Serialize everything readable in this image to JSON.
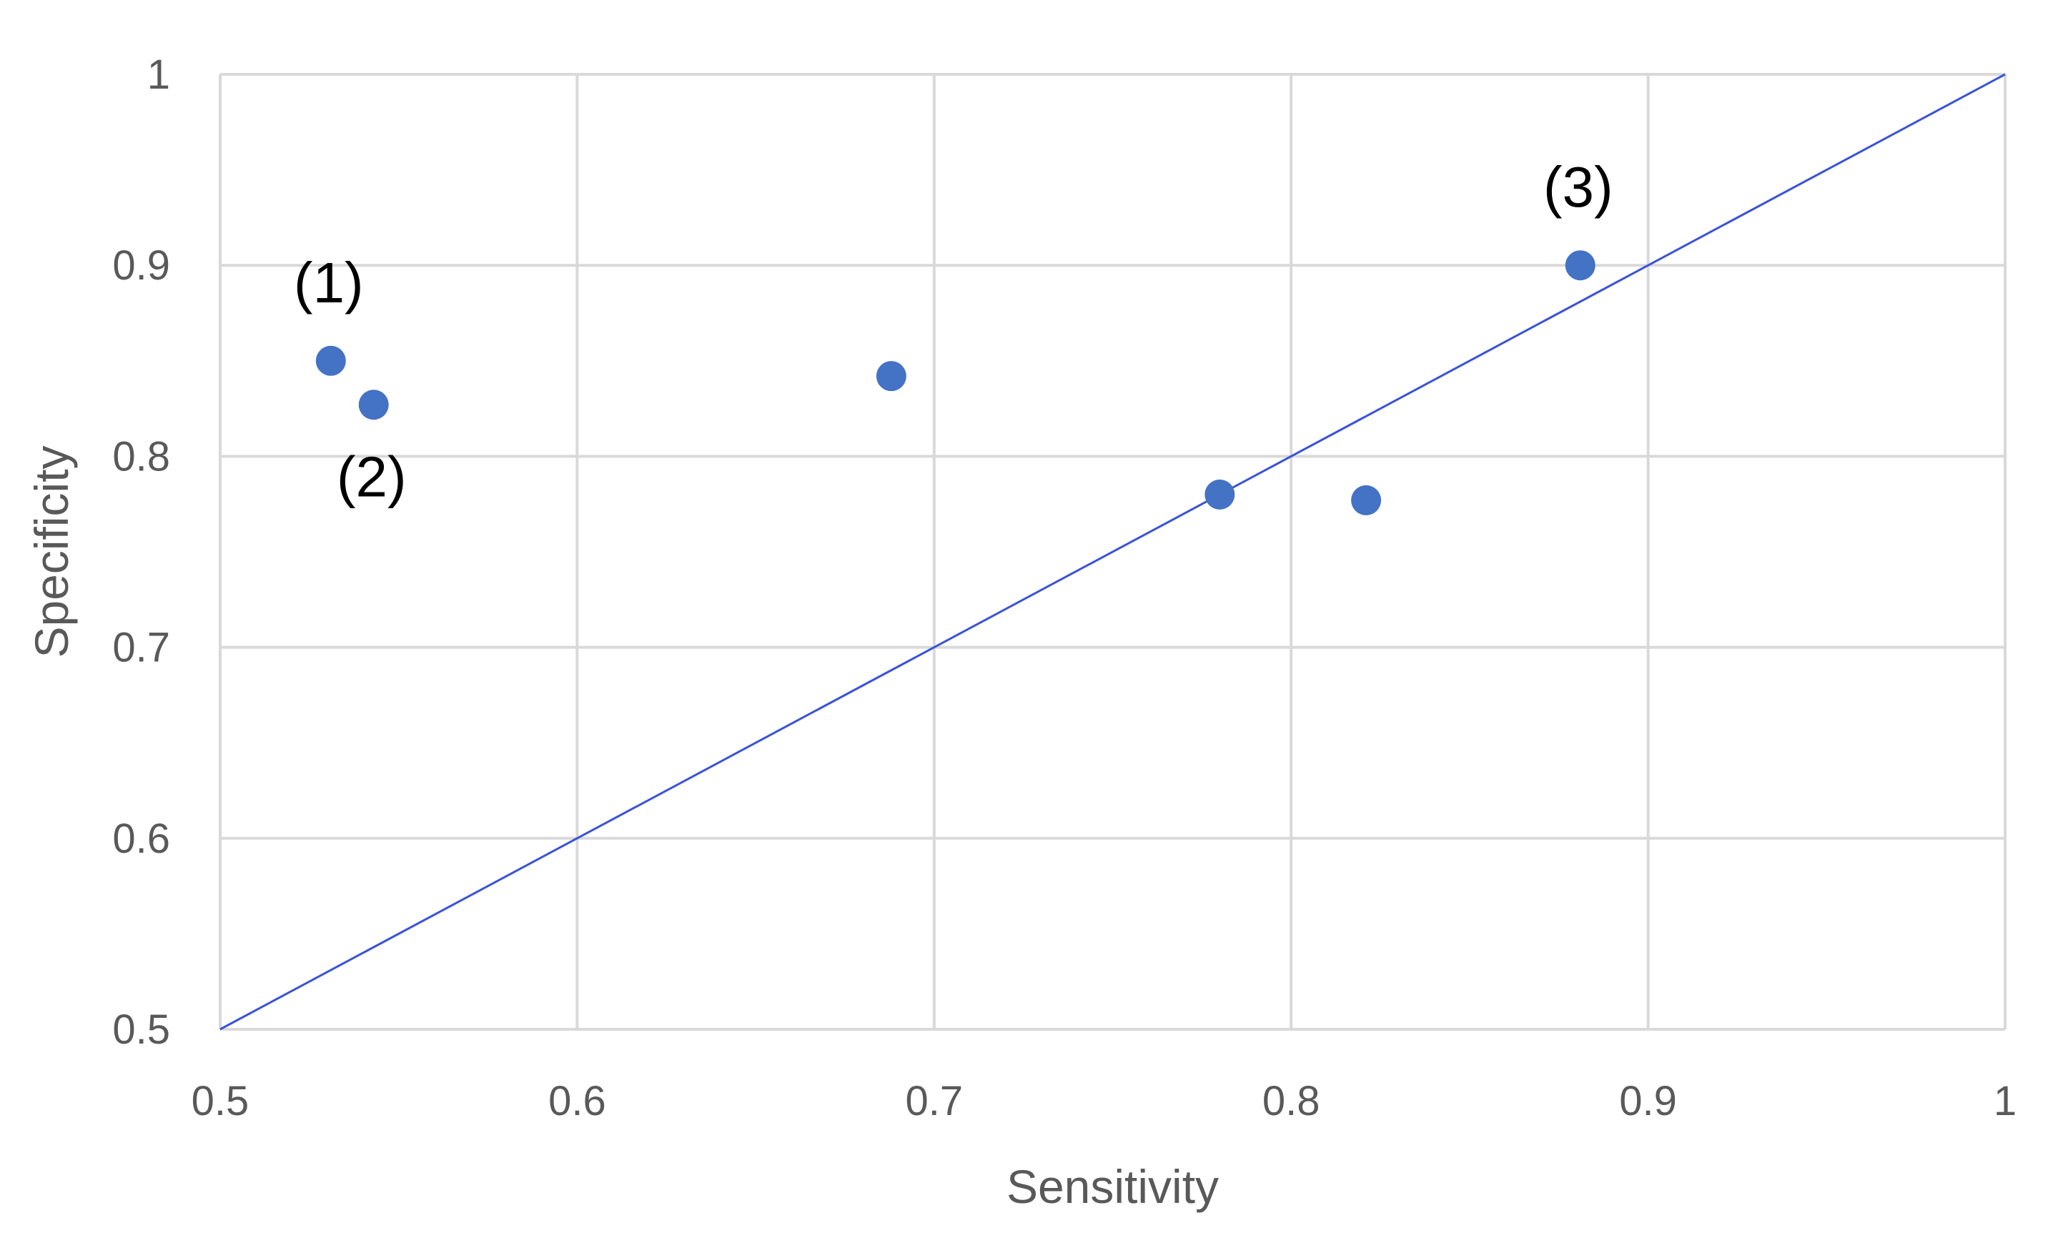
{
  "chart_data": {
    "type": "scatter",
    "title": "",
    "xlabel": "Sensitivity",
    "ylabel": "Specificity",
    "xlim": [
      0.5,
      1
    ],
    "ylim": [
      0.5,
      1
    ],
    "x_ticks": [
      0.5,
      0.6,
      0.7,
      0.8,
      0.9,
      1
    ],
    "y_ticks": [
      0.5,
      0.6,
      0.7,
      0.8,
      0.9,
      1
    ],
    "x_tick_labels": [
      "0.5",
      "0.6",
      "0.7",
      "0.8",
      "0.9",
      "1"
    ],
    "y_tick_labels": [
      "0.5",
      "0.6",
      "0.7",
      "0.8",
      "0.9",
      "1"
    ],
    "grid": true,
    "series": [
      {
        "name": "points",
        "x": [
          0.531,
          0.543,
          0.688,
          0.78,
          0.821,
          0.881
        ],
        "y": [
          0.85,
          0.827,
          0.842,
          0.78,
          0.777,
          0.9
        ]
      }
    ],
    "reference_line": {
      "name": "diagonal",
      "x": [
        0.5,
        1
      ],
      "y": [
        0.5,
        1
      ]
    },
    "annotations": [
      {
        "text": "(1)",
        "point_index": 0,
        "placement": "above"
      },
      {
        "text": "(2)",
        "point_index": 1,
        "placement": "below"
      },
      {
        "text": "(3)",
        "point_index": 5,
        "placement": "above"
      }
    ],
    "colors": {
      "marker": "#4472C4",
      "line": "#3A53D6",
      "grid": "#D9D9D9",
      "text": "#595959",
      "annotation": "#000000"
    }
  }
}
